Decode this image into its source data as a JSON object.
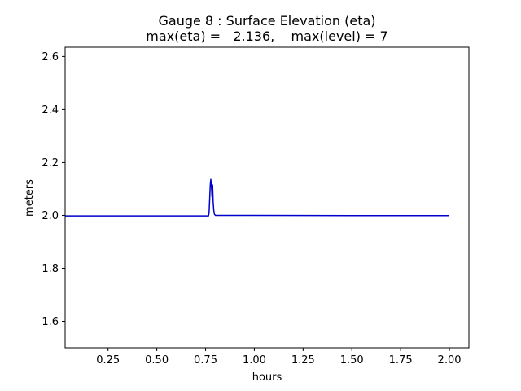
{
  "chart_data": {
    "type": "line",
    "title": "Gauge 8 : Surface Elevation (eta)",
    "subtitle": "max(eta) =   2.136,    max(level) = 7",
    "xlabel": "hours",
    "ylabel": "meters",
    "xlim": [
      0.03,
      2.1
    ],
    "ylim": [
      1.5,
      2.635
    ],
    "xticks": [
      0.25,
      0.5,
      0.75,
      1.0,
      1.25,
      1.5,
      1.75,
      2.0
    ],
    "xtick_labels": [
      "0.25",
      "0.50",
      "0.75",
      "1.00",
      "1.25",
      "1.50",
      "1.75",
      "2.00"
    ],
    "yticks": [
      1.6,
      1.8,
      2.0,
      2.2,
      2.4,
      2.6
    ],
    "ytick_labels": [
      "1.6",
      "1.8",
      "2.0",
      "2.2",
      "2.4",
      "2.6"
    ],
    "grid": false,
    "series": [
      {
        "color": "#0000cc",
        "x": [
          0.03,
          0.3,
          0.6,
          0.765,
          0.768,
          0.771,
          0.774,
          0.777,
          0.78,
          0.783,
          0.786,
          0.789,
          0.792,
          0.795,
          0.8,
          0.81,
          1.0,
          1.5,
          2.0
        ],
        "y": [
          1.998,
          1.998,
          1.998,
          1.998,
          2.01,
          2.06,
          2.115,
          2.136,
          2.11,
          2.07,
          2.115,
          2.05,
          2.02,
          2.005,
          2.0,
          2.0,
          2.0,
          1.999,
          1.999
        ]
      }
    ]
  }
}
